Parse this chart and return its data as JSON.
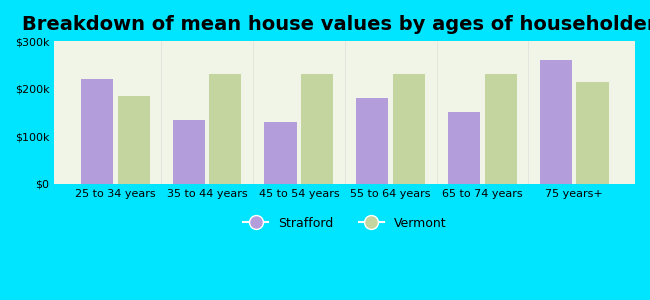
{
  "title": "Breakdown of mean house values by ages of householders",
  "categories": [
    "25 to 34 years",
    "35 to 44 years",
    "45 to 54 years",
    "55 to 64 years",
    "65 to 74 years",
    "75 years+"
  ],
  "strafford_values": [
    220000,
    135000,
    130000,
    180000,
    150000,
    260000
  ],
  "vermont_values": [
    185000,
    230000,
    230000,
    230000,
    230000,
    215000
  ],
  "strafford_color": "#b39ddb",
  "vermont_color": "#c5d5a0",
  "background_outer": "#00e5ff",
  "background_inner": "#f0f5e8",
  "ylim": [
    0,
    300000
  ],
  "yticks": [
    0,
    100000,
    200000,
    300000
  ],
  "ytick_labels": [
    "$0",
    "$100k",
    "$200k",
    "$300k"
  ],
  "title_fontsize": 14,
  "legend_labels": [
    "Strafford",
    "Vermont"
  ],
  "bar_width": 0.35,
  "bar_gap": 0.05
}
